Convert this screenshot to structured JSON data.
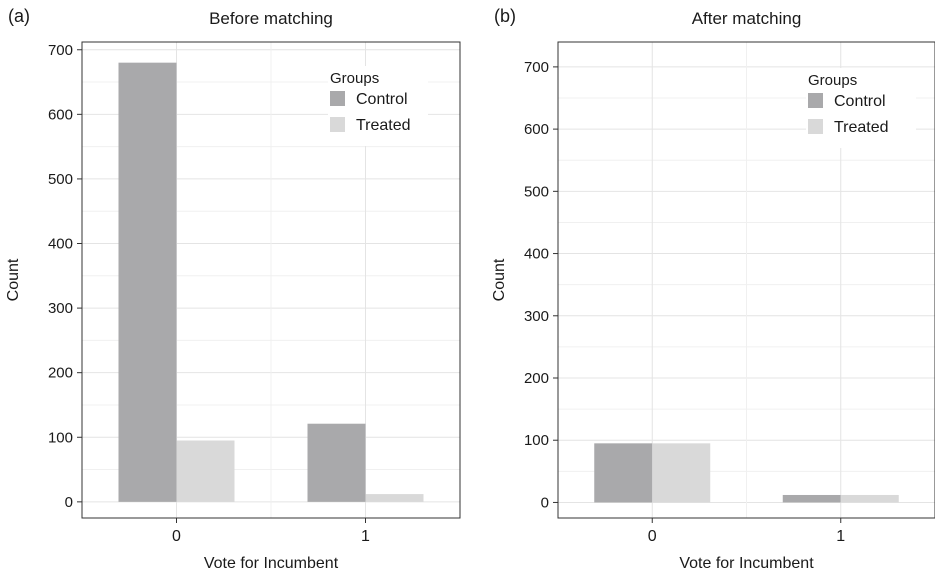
{
  "chart_data": [
    {
      "type": "bar",
      "panel_label": "(a)",
      "title": "Before matching",
      "xlabel": "Vote for Incumbent",
      "ylabel": "Count",
      "categories": [
        "0",
        "1"
      ],
      "ylim": [
        -25,
        712
      ],
      "yticks": [
        0,
        100,
        200,
        300,
        400,
        500,
        600,
        700
      ],
      "grid": true,
      "legend": {
        "title": "Groups",
        "placement": "top-right"
      },
      "series": [
        {
          "name": "Control",
          "color": "#a9a9ab",
          "values": [
            680,
            121
          ]
        },
        {
          "name": "Treated",
          "color": "#d9d9d9",
          "values": [
            95,
            12
          ]
        }
      ]
    },
    {
      "type": "bar",
      "panel_label": "(b)",
      "title": "After matching",
      "xlabel": "Vote for Incumbent",
      "ylabel": "Count",
      "categories": [
        "0",
        "1"
      ],
      "ylim": [
        -25,
        740
      ],
      "yticks": [
        0,
        100,
        200,
        300,
        400,
        500,
        600,
        700
      ],
      "grid": true,
      "legend": {
        "title": "Groups",
        "placement": "top-right"
      },
      "series": [
        {
          "name": "Control",
          "color": "#a9a9ab",
          "values": [
            95,
            12
          ]
        },
        {
          "name": "Treated",
          "color": "#d9d9d9",
          "values": [
            95,
            12
          ]
        }
      ]
    }
  ]
}
